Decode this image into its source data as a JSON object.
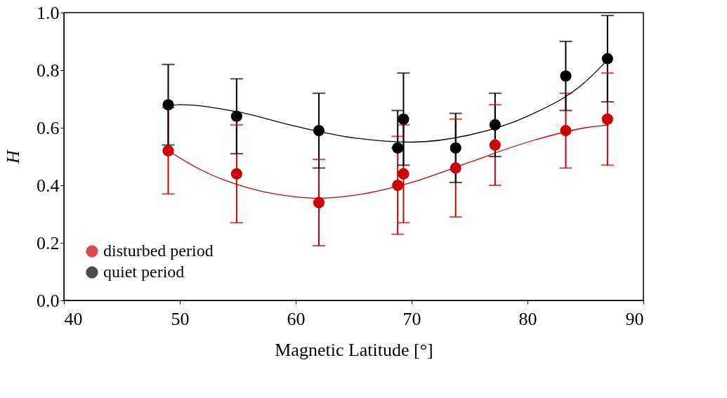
{
  "chart_data": {
    "type": "scatter",
    "xlabel": "Magnetic Latitude [°]",
    "ylabel": "H",
    "xlim": [
      40,
      90
    ],
    "xticks": [
      40,
      50,
      60,
      70,
      80,
      90
    ],
    "ylim": [
      0,
      1
    ],
    "yticks": [
      {
        "value": 0,
        "label": "0.0"
      },
      0.2,
      0.4,
      0.6,
      0.8,
      {
        "value": 1,
        "label": "1.0"
      }
    ],
    "x": [
      49.0,
      54.9,
      62.0,
      68.8,
      69.3,
      73.8,
      77.2,
      83.3,
      86.9
    ],
    "grid": false,
    "legend": "bottom left",
    "series": [
      {
        "name": "disturbed period",
        "color": "#cc0000",
        "marker": "circle",
        "values": [
          0.52,
          0.44,
          0.34,
          0.4,
          0.44,
          0.46,
          0.54,
          0.59,
          0.63
        ],
        "errors": [
          [
            0.37,
            0.67
          ],
          [
            0.27,
            0.61
          ],
          [
            0.19,
            0.49
          ],
          [
            0.23,
            0.57
          ],
          [
            0.27,
            0.61
          ],
          [
            0.29,
            0.63
          ],
          [
            0.4,
            0.68
          ],
          [
            0.46,
            0.72
          ],
          [
            0.47,
            0.79
          ]
        ]
      },
      {
        "name": "quiet period",
        "color": "#000000",
        "marker": "circle",
        "values": [
          0.68,
          0.64,
          0.59,
          0.53,
          0.63,
          0.53,
          0.61,
          0.78,
          0.84
        ],
        "errors": [
          [
            0.54,
            0.82
          ],
          [
            0.51,
            0.77
          ],
          [
            0.46,
            0.72
          ],
          [
            0.53,
            0.66
          ],
          [
            0.47,
            0.79
          ],
          [
            0.41,
            0.65
          ],
          [
            0.5,
            0.72
          ],
          [
            0.66,
            0.9
          ],
          [
            0.69,
            0.99
          ]
        ]
      },
      {
        "type": "line",
        "color": "#cc0000",
        "x": [
          49,
          52,
          56,
          60,
          62,
          65,
          70,
          75,
          80,
          85,
          87
        ],
        "values": [
          0.52,
          0.45,
          0.39,
          0.36,
          0.355,
          0.365,
          0.41,
          0.48,
          0.55,
          0.6,
          0.61
        ]
      },
      {
        "type": "line",
        "color": "#000000",
        "x": [
          49,
          50,
          55,
          60,
          65,
          70,
          75,
          80,
          85,
          87
        ],
        "values": [
          0.675,
          0.68,
          0.655,
          0.605,
          0.565,
          0.55,
          0.575,
          0.64,
          0.76,
          0.84
        ]
      }
    ]
  }
}
